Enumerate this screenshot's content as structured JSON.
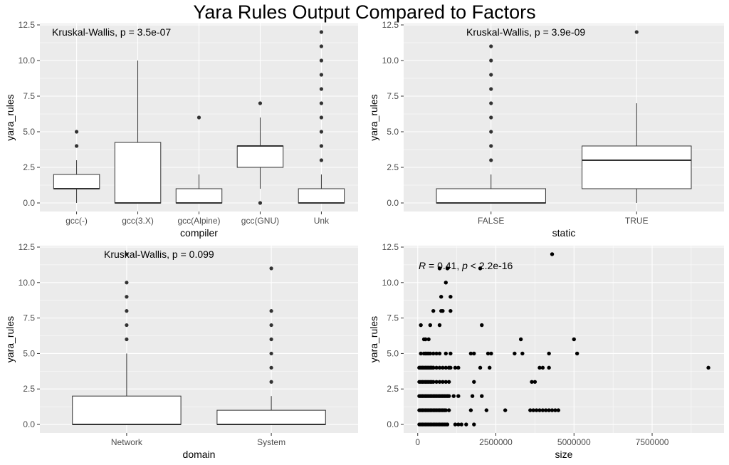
{
  "title": "Yara Rules Output Compared to Factors",
  "colors": {
    "panel_bg": "#ebebeb",
    "grid_major": "#ffffff",
    "box_fill": "#ffffff",
    "box_line": "#333333",
    "point": "#000000",
    "outlier": "#333333"
  },
  "chart_data": [
    {
      "id": "compiler",
      "type": "box",
      "title": "",
      "xlabel": "compiler",
      "ylabel": "yara_rules",
      "ylim": [
        -0.6,
        12.6
      ],
      "yticks": [
        0,
        2.5,
        5,
        7.5,
        10,
        12.5
      ],
      "ytick_labels": [
        "0.0",
        "2.5",
        "5.0",
        "7.5",
        "10.0",
        "12.5"
      ],
      "annotation": "Kruskal-Wallis, p = 3.5e-07",
      "categories": [
        "gcc(-)",
        "gcc(3.X)",
        "gcc(Alpine)",
        "gcc(GNU)",
        "Unk"
      ],
      "boxes": [
        {
          "q1": 1,
          "median": 1,
          "q3": 2,
          "whisker_low": 0,
          "whisker_high": 3,
          "outliers": [
            4,
            5
          ]
        },
        {
          "q1": 0,
          "median": 0,
          "q3": 4.25,
          "whisker_low": 0,
          "whisker_high": 10,
          "outliers": []
        },
        {
          "q1": 0,
          "median": 0,
          "q3": 1,
          "whisker_low": 0,
          "whisker_high": 2,
          "outliers": [
            6
          ]
        },
        {
          "q1": 2.5,
          "median": 4,
          "q3": 4,
          "whisker_low": 1,
          "whisker_high": 6,
          "outliers": [
            0,
            7
          ]
        },
        {
          "q1": 0,
          "median": 0,
          "q3": 1,
          "whisker_low": 0,
          "whisker_high": 2,
          "outliers": [
            3,
            4,
            5,
            6,
            7,
            8,
            9,
            10,
            11,
            12
          ]
        }
      ]
    },
    {
      "id": "static",
      "type": "box",
      "title": "",
      "xlabel": "static",
      "ylabel": "yara_rules",
      "ylim": [
        -0.6,
        12.6
      ],
      "yticks": [
        0,
        2.5,
        5,
        7.5,
        10,
        12.5
      ],
      "ytick_labels": [
        "0.0",
        "2.5",
        "5.0",
        "7.5",
        "10.0",
        "12.5"
      ],
      "annotation": "Kruskal-Wallis, p = 3.9e-09",
      "categories": [
        "FALSE",
        "TRUE"
      ],
      "boxes": [
        {
          "q1": 0,
          "median": 0,
          "q3": 1,
          "whisker_low": 0,
          "whisker_high": 2,
          "outliers": [
            3,
            4,
            5,
            6,
            7,
            8,
            9,
            10,
            11
          ]
        },
        {
          "q1": 1,
          "median": 3,
          "q3": 4,
          "whisker_low": 0,
          "whisker_high": 7,
          "outliers": [
            12
          ]
        }
      ]
    },
    {
      "id": "domain",
      "type": "box",
      "title": "",
      "xlabel": "domain",
      "ylabel": "yara_rules",
      "ylim": [
        -0.6,
        12.6
      ],
      "yticks": [
        0,
        2.5,
        5,
        7.5,
        10,
        12.5
      ],
      "ytick_labels": [
        "0.0",
        "2.5",
        "5.0",
        "7.5",
        "10.0",
        "12.5"
      ],
      "annotation": "Kruskal-Wallis, p = 0.099",
      "categories": [
        "Network",
        "System"
      ],
      "boxes": [
        {
          "q1": 0,
          "median": 0,
          "q3": 2,
          "whisker_low": 0,
          "whisker_high": 5,
          "outliers": [
            6,
            7,
            8,
            9,
            10,
            12
          ]
        },
        {
          "q1": 0,
          "median": 0,
          "q3": 1,
          "whisker_low": 0,
          "whisker_high": 2,
          "outliers": [
            3,
            4,
            5,
            6,
            7,
            8,
            11
          ]
        }
      ]
    },
    {
      "id": "size",
      "type": "scatter",
      "title": "",
      "xlabel": "size",
      "ylabel": "yara_rules",
      "xlim": [
        -450000,
        9800000
      ],
      "ylim": [
        -0.6,
        12.6
      ],
      "xticks": [
        0,
        2500000,
        5000000,
        7500000
      ],
      "xtick_labels": [
        "0",
        "2500000",
        "5000000",
        "7500000"
      ],
      "yticks": [
        0,
        2.5,
        5,
        7.5,
        10,
        12.5
      ],
      "ytick_labels": [
        "0.0",
        "2.5",
        "5.0",
        "7.5",
        "10.0",
        "12.5"
      ],
      "annotation": {
        "r_symbol": "R",
        "r_text": " = 0.41, ",
        "p_symbol": "p",
        "p_text": " < 2.2e-16"
      },
      "x": [
        50000,
        100000,
        150000,
        200000,
        250000,
        300000,
        350000,
        400000,
        450000,
        500000,
        550000,
        600000,
        650000,
        700000,
        750000,
        800000,
        850000,
        900000,
        950000,
        1200000,
        1300000,
        1400000,
        1550000,
        1800000,
        50000,
        100000,
        150000,
        200000,
        250000,
        300000,
        350000,
        400000,
        450000,
        500000,
        550000,
        600000,
        650000,
        700000,
        750000,
        800000,
        850000,
        900000,
        1000000,
        1700000,
        2200000,
        2800000,
        3600000,
        3700000,
        3800000,
        3900000,
        4000000,
        4100000,
        4200000,
        4300000,
        4400000,
        4500000,
        50000,
        100000,
        150000,
        200000,
        250000,
        300000,
        350000,
        400000,
        450000,
        500000,
        550000,
        600000,
        650000,
        700000,
        750000,
        800000,
        850000,
        900000,
        950000,
        1000000,
        1150000,
        1300000,
        1750000,
        2050000,
        50000,
        100000,
        150000,
        200000,
        250000,
        300000,
        350000,
        400000,
        450000,
        500000,
        600000,
        700000,
        800000,
        900000,
        1000000,
        1800000,
        3650000,
        3750000,
        50000,
        100000,
        150000,
        200000,
        250000,
        300000,
        350000,
        400000,
        450000,
        500000,
        600000,
        700000,
        800000,
        900000,
        1000000,
        1050000,
        2000000,
        50000,
        100000,
        150000,
        200000,
        250000,
        300000,
        350000,
        400000,
        450000,
        500000,
        1000000,
        1200000,
        1300000,
        2300000,
        3900000,
        4000000,
        4200000,
        9300000,
        100000,
        200000,
        250000,
        300000,
        350000,
        400000,
        500000,
        600000,
        700000,
        900000,
        1050000,
        1700000,
        1800000,
        2250000,
        2350000,
        3100000,
        3350000,
        4200000,
        5100000,
        200000,
        250000,
        350000,
        3300000,
        5000000,
        100000,
        400000,
        700000,
        2050000,
        500000,
        750000,
        800000,
        1050000,
        750000,
        1050000,
        900000,
        700000,
        2000000,
        950000,
        4300000
      ],
      "y": [
        0,
        0,
        0,
        0,
        0,
        0,
        0,
        0,
        0,
        0,
        0,
        0,
        0,
        0,
        0,
        0,
        0,
        0,
        0,
        0,
        0,
        0,
        0,
        0,
        1,
        1,
        1,
        1,
        1,
        1,
        1,
        1,
        1,
        1,
        1,
        1,
        1,
        1,
        1,
        1,
        1,
        1,
        1,
        1,
        1,
        1,
        1,
        1,
        1,
        1,
        1,
        1,
        1,
        1,
        1,
        1,
        2,
        2,
        2,
        2,
        2,
        2,
        2,
        2,
        2,
        2,
        2,
        2,
        2,
        2,
        2,
        2,
        2,
        2,
        2,
        2,
        2,
        2,
        2,
        2,
        3,
        3,
        3,
        3,
        3,
        3,
        3,
        3,
        3,
        3,
        3,
        3,
        3,
        3,
        3,
        3,
        3,
        3,
        4,
        4,
        4,
        4,
        4,
        4,
        4,
        4,
        4,
        4,
        4,
        4,
        4,
        4,
        4,
        4,
        4,
        4,
        4,
        4,
        4,
        4,
        4,
        4,
        4,
        4,
        4,
        4,
        4,
        4,
        4,
        4,
        4,
        4,
        4,
        5,
        5,
        5,
        5,
        5,
        5,
        5,
        5,
        5,
        5,
        5,
        5,
        5,
        5,
        5,
        5,
        5,
        5,
        5,
        6,
        6,
        6,
        6,
        6,
        7,
        7,
        7,
        7,
        8,
        8,
        8,
        8,
        9,
        9,
        10,
        11,
        11,
        11,
        12
      ]
    }
  ]
}
